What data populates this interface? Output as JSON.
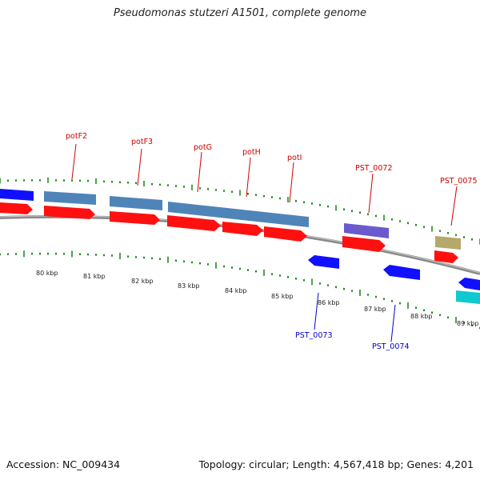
{
  "title": "Pseudomonas stutzeri A1501, complete genome",
  "accession": "Accession: NC_009434",
  "summary": "Topology: circular; Length: 4,567,418 bp; Genes: 4,201",
  "colors": {
    "backbone": "#8a8a8a",
    "tick": "#1e8c1e",
    "label_forward": "#cc0000",
    "label_reverse": "#0000cc",
    "cds_red": "#ff1010",
    "gene_steel": "#4f84b8",
    "gene_blue": "#1010ff",
    "gene_purple": "#6a5acd",
    "gene_khaki": "#b5a86a",
    "gene_cyan": "#10c8d0"
  },
  "kbp_labels": [
    "80 kbp",
    "81 kbp",
    "82 kbp",
    "83 kbp",
    "84 kbp",
    "85 kbp",
    "86 kbp",
    "87 kbp",
    "88 kbp",
    "89 kbp"
  ],
  "forward_gene_labels": [
    "potF2",
    "potF3",
    "potG",
    "potH",
    "potI",
    "PST_0072",
    "PST_0075"
  ],
  "reverse_gene_labels": [
    "PST_0073",
    "PST_0074"
  ]
}
